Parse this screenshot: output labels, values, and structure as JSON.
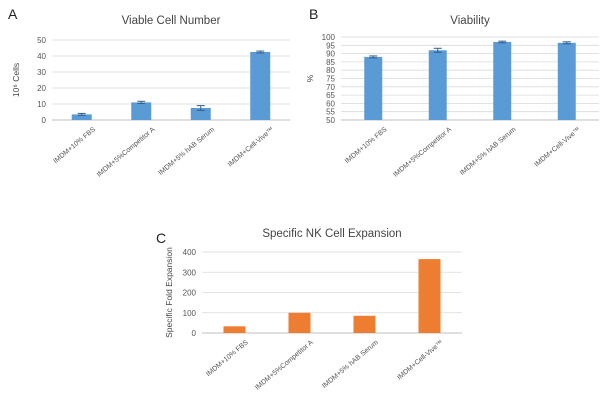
{
  "chart_data": [
    {
      "panel": "A",
      "type": "bar",
      "title": "Viable Cell Number",
      "ylabel": "10⁶ Cells",
      "categories": [
        "IMDM+10% FBS",
        "IMDM+5%Competitor A",
        "IMDM+5% hAB Serum",
        "IMDM+Cell-Vive™"
      ],
      "values": [
        3.5,
        11,
        7.5,
        42.5
      ],
      "errors": [
        0.6,
        0.7,
        1.5,
        0.6
      ],
      "ylim": [
        0,
        50
      ],
      "yticks": [
        "0",
        "10",
        "20",
        "30",
        "40",
        "50"
      ],
      "color": "#5b9bd5",
      "grid": true
    },
    {
      "panel": "B",
      "type": "bar",
      "title": "Viability",
      "ylabel": "%",
      "categories": [
        "IMDM+10% FBS",
        "IMDM+5%Competitor A",
        "IMDM+5% hAB Serum",
        "IMDM+Cell-Vive™"
      ],
      "values": [
        88,
        92,
        97,
        96.5
      ],
      "errors": [
        0.6,
        1.2,
        0.5,
        0.6
      ],
      "ylim": [
        50,
        100
      ],
      "yticks": [
        "50",
        "55",
        "60",
        "65",
        "70",
        "75",
        "80",
        "85",
        "90",
        "95",
        "100"
      ],
      "color": "#5b9bd5",
      "grid": true
    },
    {
      "panel": "C",
      "type": "bar",
      "title": "Specific NK Cell Expansion",
      "ylabel": "Specific Fold Expansion",
      "categories": [
        "IMDM+10% FBS",
        "IMDM+5%Competitor A",
        "IMDM+5% hAB Serum",
        "IMDM+Cell-Vive™"
      ],
      "values": [
        33,
        100,
        85,
        365
      ],
      "ylim": [
        0,
        400
      ],
      "yticks": [
        "0",
        "100",
        "200",
        "300",
        "400"
      ],
      "color": "#ed7d31",
      "grid": true
    }
  ]
}
